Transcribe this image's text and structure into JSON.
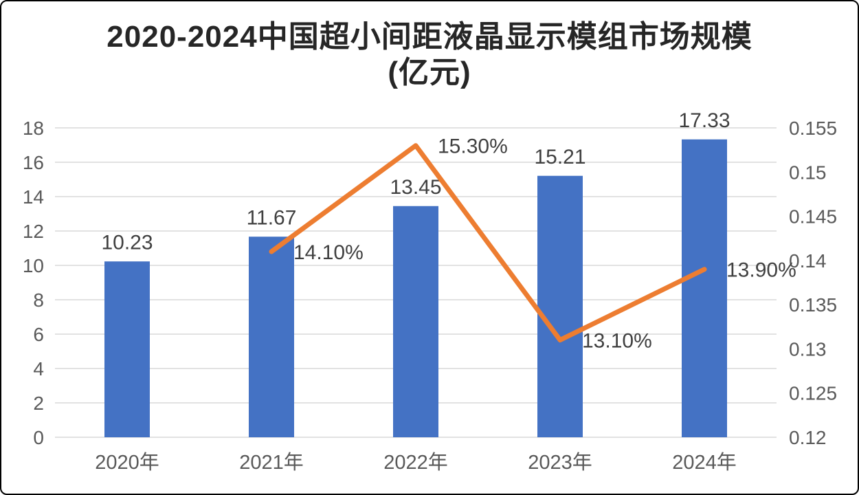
{
  "title": {
    "line1": "2020-2024中国超小间距液晶显示模组市场规模",
    "line2": "(亿元)"
  },
  "chart_data": {
    "type": "bar",
    "subtype": "combo-bar-line",
    "categories": [
      "2020年",
      "2021年",
      "2022年",
      "2023年",
      "2024年"
    ],
    "series": [
      {
        "kind": "bar",
        "axis": "left",
        "color": "#4472C4",
        "values": [
          10.23,
          11.67,
          13.45,
          15.21,
          17.33
        ],
        "labels": [
          "10.23",
          "11.67",
          "13.45",
          "15.21",
          "17.33"
        ]
      },
      {
        "kind": "line",
        "axis": "right",
        "color": "#ED7D31",
        "values": [
          null,
          0.141,
          0.153,
          0.131,
          0.139
        ],
        "labels": [
          "",
          "14.10%",
          "15.30%",
          "13.10%",
          "13.90%"
        ]
      }
    ],
    "left_axis": {
      "min": 0,
      "max": 18,
      "step": 2,
      "ticks": [
        "0",
        "2",
        "4",
        "6",
        "8",
        "10",
        "12",
        "14",
        "16",
        "18"
      ]
    },
    "right_axis": {
      "min": 0.12,
      "max": 0.155,
      "step": 0.005,
      "ticks": [
        "0.12",
        "0.125",
        "0.13",
        "0.135",
        "0.14",
        "0.145",
        "0.15",
        "0.155"
      ]
    },
    "grid": true,
    "legend": "none"
  },
  "colors": {
    "bar": "#4472C4",
    "line": "#ED7D31",
    "grid": "#D9D9D9",
    "axis_text": "#595959",
    "data_label": "#404040",
    "title_text": "#262626",
    "border": "#000000",
    "background": "#FFFFFF"
  }
}
